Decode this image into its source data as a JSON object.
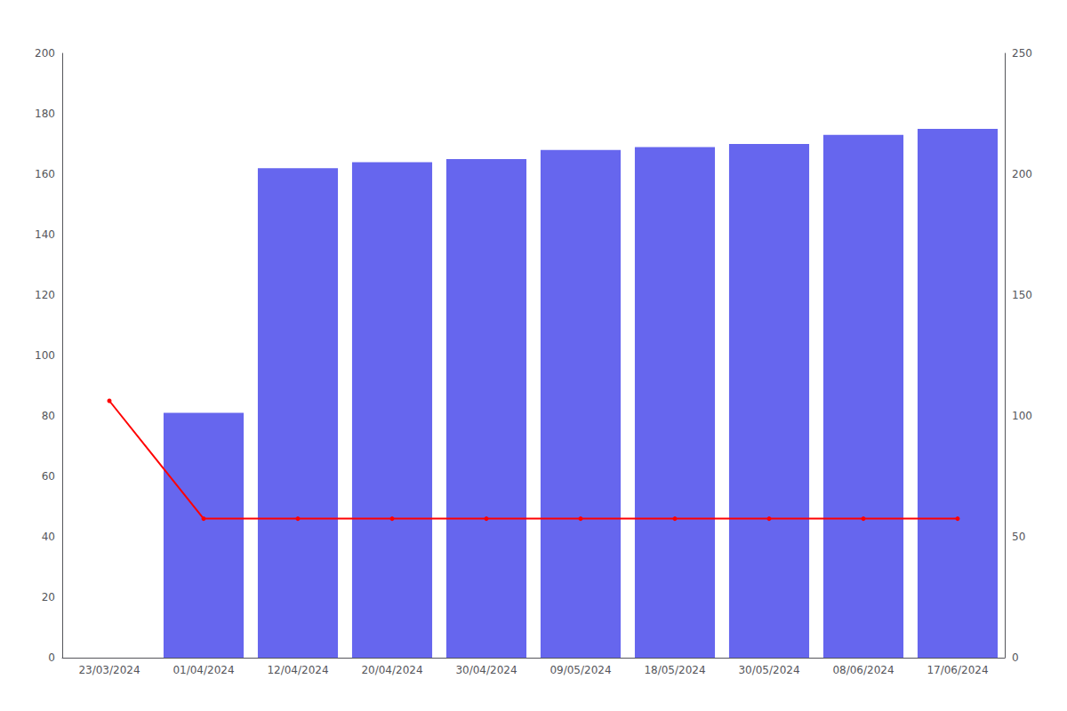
{
  "chart_data": {
    "type": "bar",
    "categories": [
      "23/03/2024",
      "01/04/2024",
      "12/04/2024",
      "20/04/2024",
      "30/04/2024",
      "09/05/2024",
      "18/05/2024",
      "30/05/2024",
      "08/06/2024",
      "17/06/2024"
    ],
    "series": [
      {
        "type": "bar",
        "color": "#6666ee",
        "values": [
          0,
          81,
          162,
          164,
          165,
          168,
          169,
          170,
          173,
          175
        ]
      },
      {
        "type": "line",
        "color": "#ff0000",
        "marker": "circle",
        "values": [
          85,
          46,
          46,
          46,
          46,
          46,
          46,
          46,
          46,
          46
        ]
      }
    ],
    "ylim": [
      0,
      200
    ],
    "yticks": [
      0,
      20,
      40,
      60,
      80,
      100,
      120,
      140,
      160,
      180,
      200
    ],
    "y2lim": [
      0,
      250
    ],
    "y2ticks": [
      0,
      50,
      100,
      150,
      200,
      250
    ],
    "grid": false
  }
}
